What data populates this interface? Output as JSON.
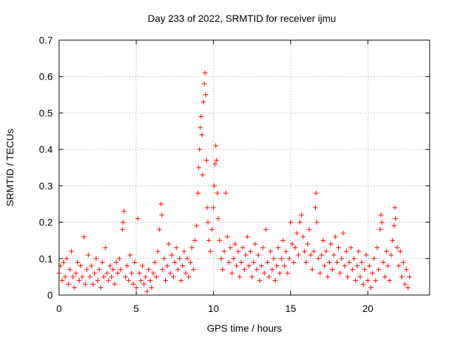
{
  "chart_data": {
    "type": "scatter",
    "title": "Day 233 of 2022, SRMTID for receiver ijmu",
    "xlabel": "GPS time / hours",
    "ylabel": "SRMTID / TECUs",
    "xlim": [
      0,
      24
    ],
    "ylim": [
      0,
      0.7
    ],
    "xticks": [
      0,
      5,
      10,
      15,
      20
    ],
    "yticks": [
      0,
      0.1,
      0.2,
      0.3,
      0.4,
      0.5,
      0.6,
      0.7
    ],
    "xtick_labels": [
      "0",
      "5",
      "10",
      "15",
      "20"
    ],
    "ytick_labels": [
      "0",
      "0.1",
      "0.2",
      "0.3",
      "0.4",
      "0.5",
      "0.6",
      "0.7"
    ],
    "grid": true,
    "marker": "+",
    "color": "#ff0000",
    "points_estimated": [
      [
        0.0,
        0.06
      ],
      [
        0.1,
        0.08
      ],
      [
        0.2,
        0.04
      ],
      [
        0.3,
        0.09
      ],
      [
        0.4,
        0.05
      ],
      [
        0.5,
        0.1
      ],
      [
        0.6,
        0.03
      ],
      [
        0.7,
        0.07
      ],
      [
        0.8,
        0.12
      ],
      [
        0.9,
        0.05
      ],
      [
        1.0,
        0.02
      ],
      [
        1.1,
        0.06
      ],
      [
        1.2,
        0.09
      ],
      [
        1.3,
        0.04
      ],
      [
        1.4,
        0.08
      ],
      [
        1.5,
        0.05
      ],
      [
        1.6,
        0.16
      ],
      [
        1.7,
        0.03
      ],
      [
        1.8,
        0.07
      ],
      [
        1.9,
        0.11
      ],
      [
        2.0,
        0.05
      ],
      [
        2.1,
        0.08
      ],
      [
        2.2,
        0.03
      ],
      [
        2.3,
        0.06
      ],
      [
        2.4,
        0.1
      ],
      [
        2.5,
        0.04
      ],
      [
        2.6,
        0.07
      ],
      [
        2.7,
        0.02
      ],
      [
        2.8,
        0.09
      ],
      [
        2.9,
        0.05
      ],
      [
        3.0,
        0.13
      ],
      [
        3.1,
        0.06
      ],
      [
        3.2,
        0.04
      ],
      [
        3.3,
        0.08
      ],
      [
        3.4,
        0.05
      ],
      [
        3.5,
        0.07
      ],
      [
        3.6,
        0.03
      ],
      [
        3.7,
        0.09
      ],
      [
        3.8,
        0.06
      ],
      [
        3.9,
        0.1
      ],
      [
        4.0,
        0.07
      ],
      [
        4.1,
        0.18
      ],
      [
        4.15,
        0.2
      ],
      [
        4.2,
        0.23
      ],
      [
        4.3,
        0.05
      ],
      [
        4.4,
        0.08
      ],
      [
        4.5,
        0.04
      ],
      [
        4.6,
        0.11
      ],
      [
        4.7,
        0.06
      ],
      [
        4.8,
        0.03
      ],
      [
        4.9,
        0.09
      ],
      [
        5.0,
        0.02
      ],
      [
        5.1,
        0.21
      ],
      [
        5.2,
        0.06
      ],
      [
        5.3,
        0.04
      ],
      [
        5.4,
        0.08
      ],
      [
        5.5,
        0.03
      ],
      [
        5.6,
        0.05
      ],
      [
        5.7,
        0.01
      ],
      [
        5.8,
        0.07
      ],
      [
        5.9,
        0.04
      ],
      [
        6.0,
        0.02
      ],
      [
        6.1,
        0.06
      ],
      [
        6.2,
        0.09
      ],
      [
        6.3,
        0.05
      ],
      [
        6.4,
        0.12
      ],
      [
        6.5,
        0.18
      ],
      [
        6.6,
        0.25
      ],
      [
        6.65,
        0.22
      ],
      [
        6.7,
        0.07
      ],
      [
        6.8,
        0.1
      ],
      [
        6.9,
        0.04
      ],
      [
        7.0,
        0.08
      ],
      [
        7.1,
        0.14
      ],
      [
        7.2,
        0.06
      ],
      [
        7.3,
        0.11
      ],
      [
        7.4,
        0.05
      ],
      [
        7.5,
        0.09
      ],
      [
        7.6,
        0.13
      ],
      [
        7.7,
        0.07
      ],
      [
        7.8,
        0.1
      ],
      [
        7.9,
        0.04
      ],
      [
        8.0,
        0.08
      ],
      [
        8.1,
        0.12
      ],
      [
        8.2,
        0.06
      ],
      [
        8.3,
        0.1
      ],
      [
        8.4,
        0.05
      ],
      [
        8.5,
        0.09
      ],
      [
        8.6,
        0.13
      ],
      [
        8.7,
        0.07
      ],
      [
        8.8,
        0.15
      ],
      [
        8.9,
        0.19
      ],
      [
        9.0,
        0.28
      ],
      [
        9.05,
        0.35
      ],
      [
        9.1,
        0.4
      ],
      [
        9.15,
        0.46
      ],
      [
        9.2,
        0.49
      ],
      [
        9.25,
        0.44
      ],
      [
        9.3,
        0.33
      ],
      [
        9.35,
        0.53
      ],
      [
        9.4,
        0.58
      ],
      [
        9.45,
        0.61
      ],
      [
        9.5,
        0.55
      ],
      [
        9.55,
        0.37
      ],
      [
        9.6,
        0.24
      ],
      [
        9.65,
        0.2
      ],
      [
        9.7,
        0.15
      ],
      [
        9.8,
        0.12
      ],
      [
        9.9,
        0.18
      ],
      [
        10.0,
        0.24
      ],
      [
        10.05,
        0.3
      ],
      [
        10.1,
        0.36
      ],
      [
        10.15,
        0.41
      ],
      [
        10.2,
        0.37
      ],
      [
        10.25,
        0.28
      ],
      [
        10.3,
        0.21
      ],
      [
        10.4,
        0.15
      ],
      [
        10.5,
        0.1
      ],
      [
        10.6,
        0.07
      ],
      [
        10.7,
        0.12
      ],
      [
        10.8,
        0.28
      ],
      [
        10.9,
        0.16
      ],
      [
        11.0,
        0.09
      ],
      [
        11.1,
        0.13
      ],
      [
        11.2,
        0.06
      ],
      [
        11.3,
        0.1
      ],
      [
        11.4,
        0.14
      ],
      [
        11.5,
        0.08
      ],
      [
        11.6,
        0.12
      ],
      [
        11.7,
        0.05
      ],
      [
        11.8,
        0.09
      ],
      [
        11.9,
        0.13
      ],
      [
        12.0,
        0.07
      ],
      [
        12.1,
        0.11
      ],
      [
        12.2,
        0.16
      ],
      [
        12.3,
        0.08
      ],
      [
        12.4,
        0.12
      ],
      [
        12.5,
        0.05
      ],
      [
        12.6,
        0.09
      ],
      [
        12.7,
        0.14
      ],
      [
        12.8,
        0.07
      ],
      [
        12.9,
        0.11
      ],
      [
        13.0,
        0.04
      ],
      [
        13.1,
        0.08
      ],
      [
        13.2,
        0.13
      ],
      [
        13.3,
        0.06
      ],
      [
        13.4,
        0.18
      ],
      [
        13.5,
        0.09
      ],
      [
        13.6,
        0.05
      ],
      [
        13.7,
        0.12
      ],
      [
        13.8,
        0.07
      ],
      [
        13.9,
        0.1
      ],
      [
        14.0,
        0.04
      ],
      [
        14.1,
        0.08
      ],
      [
        14.2,
        0.13
      ],
      [
        14.3,
        0.06
      ],
      [
        14.4,
        0.1
      ],
      [
        14.5,
        0.15
      ],
      [
        14.6,
        0.08
      ],
      [
        14.7,
        0.12
      ],
      [
        14.8,
        0.06
      ],
      [
        14.9,
        0.1
      ],
      [
        15.0,
        0.2
      ],
      [
        15.1,
        0.14
      ],
      [
        15.2,
        0.09
      ],
      [
        15.3,
        0.13
      ],
      [
        15.4,
        0.17
      ],
      [
        15.5,
        0.11
      ],
      [
        15.6,
        0.2
      ],
      [
        15.7,
        0.22
      ],
      [
        15.8,
        0.16
      ],
      [
        15.9,
        0.12
      ],
      [
        16.0,
        0.09
      ],
      [
        16.1,
        0.14
      ],
      [
        16.2,
        0.18
      ],
      [
        16.3,
        0.11
      ],
      [
        16.4,
        0.07
      ],
      [
        16.5,
        0.12
      ],
      [
        16.6,
        0.24
      ],
      [
        16.65,
        0.28
      ],
      [
        16.7,
        0.2
      ],
      [
        16.8,
        0.1
      ],
      [
        16.9,
        0.06
      ],
      [
        17.0,
        0.11
      ],
      [
        17.1,
        0.15
      ],
      [
        17.2,
        0.08
      ],
      [
        17.3,
        0.12
      ],
      [
        17.4,
        0.05
      ],
      [
        17.5,
        0.09
      ],
      [
        17.6,
        0.14
      ],
      [
        17.7,
        0.07
      ],
      [
        17.8,
        0.11
      ],
      [
        17.9,
        0.16
      ],
      [
        18.0,
        0.09
      ],
      [
        18.1,
        0.13
      ],
      [
        18.2,
        0.06
      ],
      [
        18.3,
        0.1
      ],
      [
        18.4,
        0.17
      ],
      [
        18.5,
        0.08
      ],
      [
        18.6,
        0.12
      ],
      [
        18.7,
        0.05
      ],
      [
        18.8,
        0.09
      ],
      [
        18.9,
        0.13
      ],
      [
        19.0,
        0.07
      ],
      [
        19.1,
        0.1
      ],
      [
        19.2,
        0.04
      ],
      [
        19.3,
        0.08
      ],
      [
        19.4,
        0.12
      ],
      [
        19.5,
        0.05
      ],
      [
        19.6,
        0.09
      ],
      [
        19.7,
        0.03
      ],
      [
        19.8,
        0.07
      ],
      [
        19.9,
        0.11
      ],
      [
        20.0,
        0.04
      ],
      [
        20.1,
        0.08
      ],
      [
        20.2,
        0.02
      ],
      [
        20.3,
        0.06
      ],
      [
        20.4,
        0.1
      ],
      [
        20.5,
        0.04
      ],
      [
        20.6,
        0.13
      ],
      [
        20.7,
        0.07
      ],
      [
        20.8,
        0.18
      ],
      [
        20.85,
        0.22
      ],
      [
        20.9,
        0.2
      ],
      [
        21.0,
        0.09
      ],
      [
        21.1,
        0.05
      ],
      [
        21.2,
        0.12
      ],
      [
        21.3,
        0.08
      ],
      [
        21.4,
        0.04
      ],
      [
        21.5,
        0.11
      ],
      [
        21.6,
        0.15
      ],
      [
        21.7,
        0.19
      ],
      [
        21.75,
        0.24
      ],
      [
        21.8,
        0.21
      ],
      [
        21.9,
        0.13
      ],
      [
        22.0,
        0.08
      ],
      [
        22.1,
        0.12
      ],
      [
        22.2,
        0.05
      ],
      [
        22.3,
        0.09
      ],
      [
        22.4,
        0.03
      ],
      [
        22.5,
        0.07
      ],
      [
        22.6,
        0.02
      ],
      [
        22.7,
        0.05
      ]
    ]
  }
}
